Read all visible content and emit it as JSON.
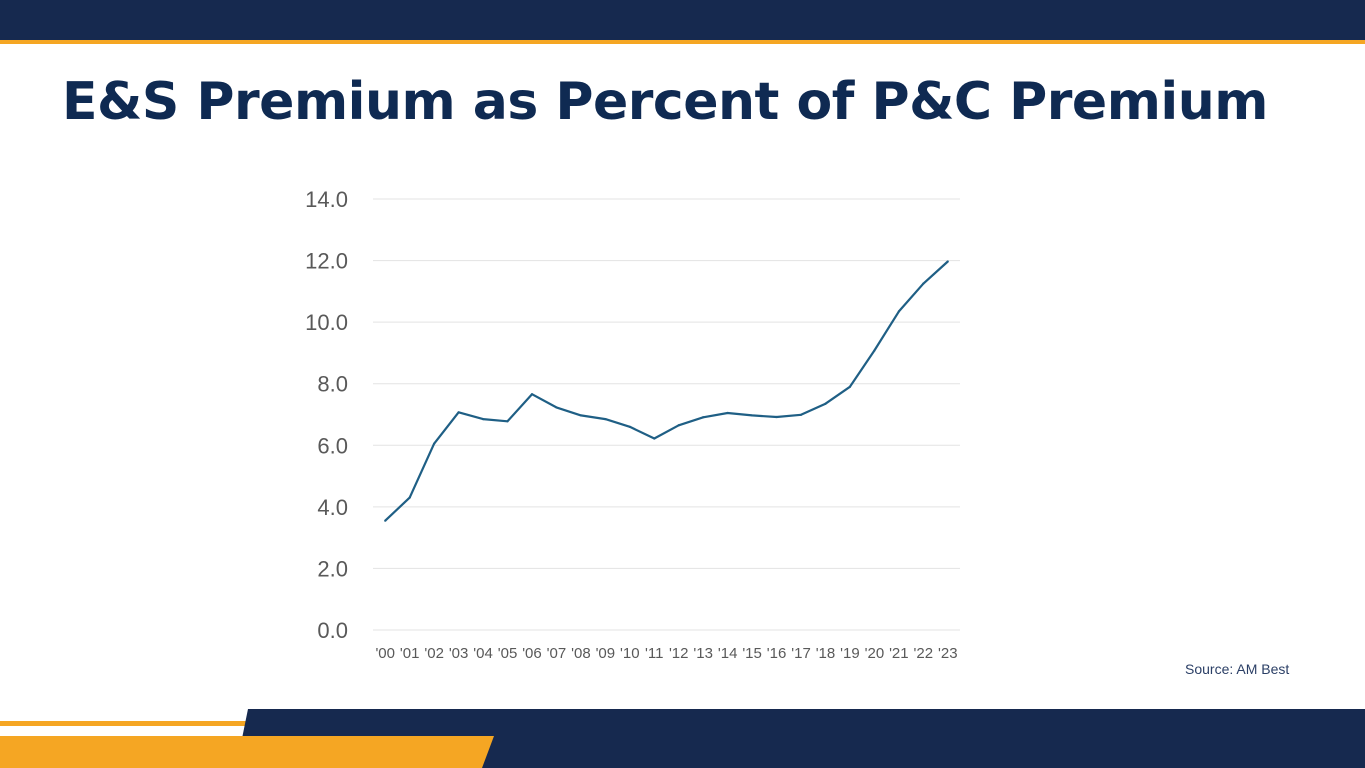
{
  "title": "E&S Premium as Percent of P&C Premium",
  "source": "Source: AM Best",
  "colors": {
    "navy": "#16294f",
    "title": "#0f2a52",
    "accent": "#f5a623",
    "line": "#1f5f85",
    "grid": "#e3e3e3",
    "tick": "#595959"
  },
  "chart_data": {
    "type": "line",
    "title": "",
    "xlabel": "",
    "ylabel": "",
    "ylim": [
      0,
      14
    ],
    "yticks": [
      0,
      2,
      4,
      6,
      8,
      10,
      12,
      14
    ],
    "ytick_labels": [
      "0.0",
      "2.0",
      "4.0",
      "6.0",
      "8.0",
      "10.0",
      "12.0",
      "14.0"
    ],
    "grid": true,
    "categories": [
      "'00",
      "'01",
      "'02",
      "'03",
      "'04",
      "'05",
      "'06",
      "'07",
      "'08",
      "'09",
      "'10",
      "'11",
      "'12",
      "'13",
      "'14",
      "'15",
      "'16",
      "'17",
      "'18",
      "'19",
      "'20",
      "'21",
      "'22",
      "'23"
    ],
    "series": [
      {
        "name": "E&S Premium as Percent of P&C Premium",
        "values": [
          3.55,
          4.3,
          6.05,
          7.07,
          6.85,
          6.78,
          7.66,
          7.23,
          6.97,
          6.85,
          6.6,
          6.22,
          6.65,
          6.91,
          7.05,
          6.97,
          6.92,
          6.99,
          7.35,
          7.9,
          9.08,
          10.35,
          11.25,
          11.97
        ]
      }
    ]
  }
}
